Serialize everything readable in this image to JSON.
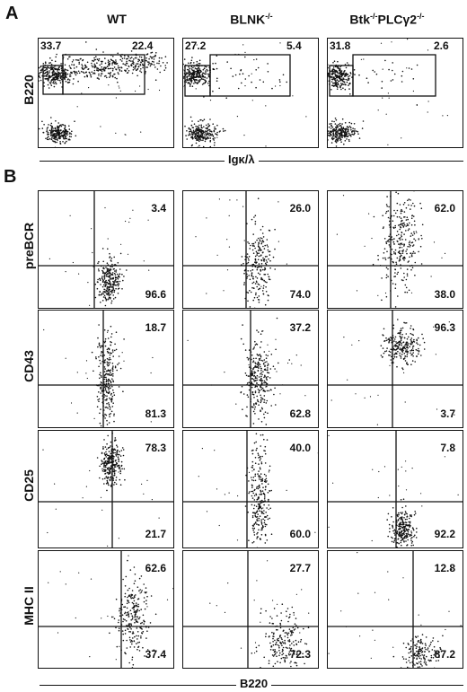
{
  "panelA": {
    "letter": "A",
    "columns": [
      "WT",
      "BLNK",
      "Btk",
      "PLCγ2"
    ],
    "ylabel": "B220",
    "xlabel": "Igκ/λ",
    "values": [
      {
        "left": "33.7",
        "right": "22.4"
      },
      {
        "left": "27.2",
        "right": "5.4"
      },
      {
        "left": "31.8",
        "right": "2.6"
      }
    ]
  },
  "superscript": "-/-",
  "panelB": {
    "letter": "B",
    "xlabel": "B220",
    "rows": [
      {
        "label": "preBCR",
        "values": [
          [
            "3.4",
            "96.6"
          ],
          [
            "26.0",
            "74.0"
          ],
          [
            "62.0",
            "38.0"
          ]
        ]
      },
      {
        "label": "CD43",
        "values": [
          [
            "18.7",
            "81.3"
          ],
          [
            "37.2",
            "62.8"
          ],
          [
            "96.3",
            "3.7"
          ]
        ]
      },
      {
        "label": "CD25",
        "values": [
          [
            "78.3",
            "21.7"
          ],
          [
            "40.0",
            "60.0"
          ],
          [
            "7.8",
            "92.2"
          ]
        ]
      },
      {
        "label": "MHC II",
        "values": [
          [
            "62.6",
            "37.4"
          ],
          [
            "27.7",
            "72.3"
          ],
          [
            "12.8",
            "87.2"
          ]
        ]
      }
    ]
  }
}
